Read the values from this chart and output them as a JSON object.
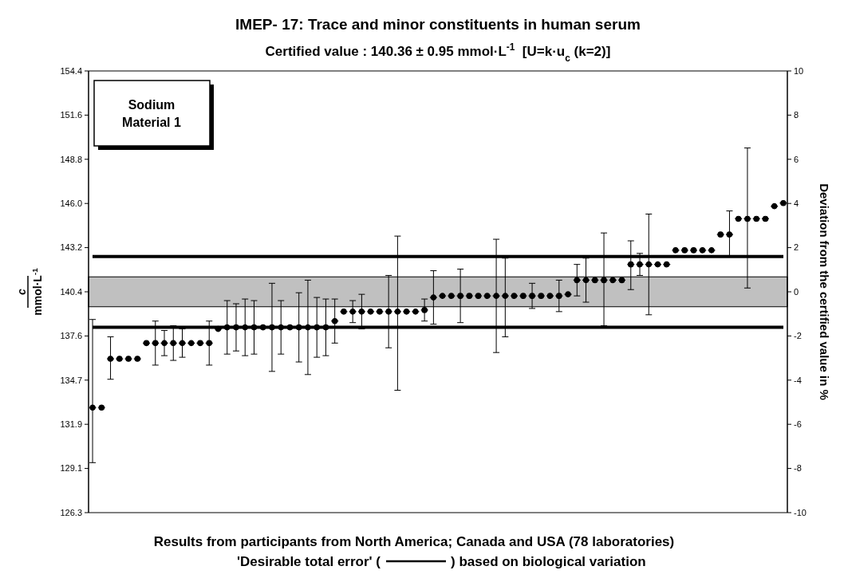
{
  "chart_data": {
    "type": "scatter",
    "title": "IMEP- 17:   Trace and minor constituents in human serum",
    "subtitle": "Certified value : 140.36 ± 0.95 mmol·L$^{-1}$  [U=k·u$_{c}$ (k=2)]",
    "ylabel": "c\nmmol·L$^{-1}$",
    "y2label": "Deviation from the certified value in %",
    "annotations": [
      "Sodium\nMaterial 1",
      "Results from participants from North America; Canada and USA (78 laboratories)",
      "'Desirable total error' ( ) based on biological variation"
    ],
    "categories": [
      null,
      null,
      null,
      null,
      null,
      null,
      null,
      null,
      null,
      null,
      null,
      null,
      null,
      null,
      null,
      null,
      null,
      null,
      null,
      null,
      null,
      null,
      null,
      null,
      null,
      null,
      null,
      null,
      null,
      null,
      null,
      null,
      null,
      null,
      null,
      null,
      null,
      null,
      null,
      null,
      null,
      null,
      null,
      null,
      null,
      null,
      null,
      null,
      null,
      null,
      null,
      null,
      null,
      null,
      null,
      null,
      null,
      null,
      null,
      null,
      null,
      null,
      null,
      null,
      null,
      null,
      null,
      null,
      null,
      null,
      null,
      null,
      null,
      null,
      null,
      null,
      null,
      null
    ],
    "series": [
      {
        "color": "#000000",
        "values": [
          133.0,
          133.0,
          136.1,
          136.1,
          136.1,
          136.1,
          137.1,
          137.1,
          137.1,
          137.1,
          137.1,
          137.1,
          137.1,
          137.1,
          138.0,
          138.1,
          138.1,
          138.1,
          138.1,
          138.1,
          138.1,
          138.1,
          138.1,
          138.1,
          138.1,
          138.1,
          138.1,
          138.5,
          139.1,
          139.1,
          139.1,
          139.1,
          139.1,
          139.1,
          139.1,
          139.1,
          139.1,
          139.2,
          140.0,
          140.1,
          140.1,
          140.1,
          140.1,
          140.1,
          140.1,
          140.1,
          140.1,
          140.1,
          140.1,
          140.1,
          140.1,
          140.1,
          140.1,
          140.2,
          141.1,
          141.1,
          141.1,
          141.1,
          141.1,
          141.1,
          142.1,
          142.1,
          142.1,
          142.1,
          142.1,
          143.0,
          143.0,
          143.0,
          143.0,
          143.0,
          144.0,
          144.0,
          145.0,
          145.0,
          145.0,
          145.0,
          145.8,
          146.0
        ],
        "errors": [
          [
            129.5,
            138.6
          ],
          null,
          [
            134.8,
            137.5
          ],
          null,
          null,
          null,
          null,
          [
            135.7,
            138.5
          ],
          [
            136.3,
            137.9
          ],
          [
            136.0,
            138.2
          ],
          [
            136.2,
            138.0
          ],
          null,
          null,
          [
            135.7,
            138.5
          ],
          null,
          [
            136.4,
            139.8
          ],
          [
            136.6,
            139.6
          ],
          [
            136.3,
            139.9
          ],
          [
            136.4,
            139.8
          ],
          null,
          [
            135.3,
            140.9
          ],
          [
            136.4,
            139.8
          ],
          null,
          [
            135.9,
            140.3
          ],
          [
            135.1,
            141.1
          ],
          [
            136.2,
            140.0
          ],
          [
            136.3,
            139.9
          ],
          [
            137.1,
            139.9
          ],
          null,
          [
            138.4,
            139.8
          ],
          [
            138.0,
            140.2
          ],
          null,
          null,
          [
            136.8,
            141.4
          ],
          [
            134.1,
            143.9
          ],
          null,
          null,
          [
            138.5,
            139.9
          ],
          [
            138.3,
            141.7
          ],
          null,
          null,
          [
            138.4,
            141.8
          ],
          null,
          null,
          null,
          [
            136.5,
            143.7
          ],
          [
            137.5,
            142.5
          ],
          null,
          null,
          [
            139.3,
            140.9
          ],
          null,
          null,
          [
            139.1,
            141.1
          ],
          null,
          [
            140.1,
            142.1
          ],
          [
            139.7,
            142.5
          ],
          null,
          [
            138.2,
            144.1
          ],
          null,
          null,
          [
            140.5,
            143.6
          ],
          [
            141.4,
            142.8
          ],
          [
            138.9,
            145.3
          ],
          null,
          null,
          null,
          null,
          null,
          null,
          null,
          null,
          [
            142.6,
            145.5
          ],
          null,
          [
            140.6,
            149.5
          ],
          null,
          null,
          null,
          null
        ]
      }
    ],
    "ylim": [
      126.324,
      154.396
    ],
    "yticks": [
      {
        "value": 126.324,
        "label": "126.3"
      },
      {
        "value": 129.131,
        "label": "129.1"
      },
      {
        "value": 131.939,
        "label": "131.9"
      },
      {
        "value": 134.746,
        "label": "134.7"
      },
      {
        "value": 137.553,
        "label": "137.6"
      },
      {
        "value": 140.36,
        "label": "140.4"
      },
      {
        "value": 143.167,
        "label": "143.2"
      },
      {
        "value": 145.974,
        "label": "146.0"
      },
      {
        "value": 148.782,
        "label": "148.8"
      },
      {
        "value": 151.589,
        "label": "151.6"
      },
      {
        "value": 154.396,
        "label": "154.4"
      }
    ],
    "y2lim": [
      -10,
      10
    ],
    "y2ticks": [
      -10,
      -8,
      -6,
      -4,
      -2,
      0,
      2,
      4,
      6,
      8,
      10
    ],
    "ref_lines": [
      {
        "axis": "y",
        "value": 142.6
      },
      {
        "axis": "y",
        "value": 138.1
      }
    ],
    "bands": [
      {
        "axis": "y",
        "from": 139.41,
        "to": 141.31,
        "color": "#c0c0c0"
      }
    ],
    "marker": "circle",
    "grid": false
  }
}
